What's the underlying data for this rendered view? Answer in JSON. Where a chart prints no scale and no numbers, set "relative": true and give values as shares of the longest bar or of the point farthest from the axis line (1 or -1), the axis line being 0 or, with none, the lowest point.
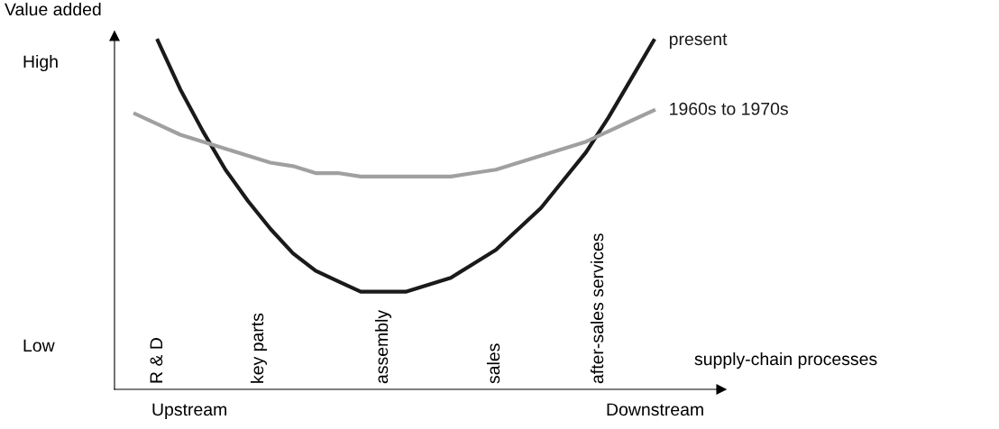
{
  "chart_data": {
    "type": "line",
    "relative": true,
    "ylabel": "Value added",
    "xlabel": "supply-chain processes",
    "categories": [
      null,
      null,
      null,
      null,
      null,
      null,
      null,
      null,
      null,
      null,
      null,
      null,
      null,
      null,
      null,
      null,
      null,
      null,
      null,
      null,
      null,
      null,
      null,
      null
    ],
    "series": [
      {
        "name": "present",
        "color": "#1a1a1a",
        "values": [
          null,
          1.0,
          0.86,
          0.74,
          0.63,
          0.54,
          0.46,
          0.39,
          0.34,
          0.31,
          0.28,
          0.28,
          0.28,
          0.3,
          0.32,
          0.36,
          0.4,
          0.46,
          0.52,
          0.6,
          0.68,
          0.78,
          0.89,
          1.0
        ]
      },
      {
        "name": "1960s to 1970s",
        "color": "#a0a0a0",
        "values": [
          0.79,
          0.76,
          0.73,
          0.71,
          0.69,
          0.67,
          0.65,
          0.64,
          0.62,
          0.62,
          0.61,
          0.61,
          0.61,
          0.61,
          0.61,
          0.62,
          0.63,
          0.65,
          0.67,
          0.69,
          0.71,
          0.74,
          0.77,
          0.8
        ]
      }
    ],
    "annotations": [
      "High",
      "Low",
      "Upstream",
      "Downstream",
      "R & D",
      "key parts",
      "assembly",
      "sales",
      "after-sales services"
    ],
    "grid": false,
    "legend": false,
    "marker": "none",
    "line_style": "solid"
  }
}
